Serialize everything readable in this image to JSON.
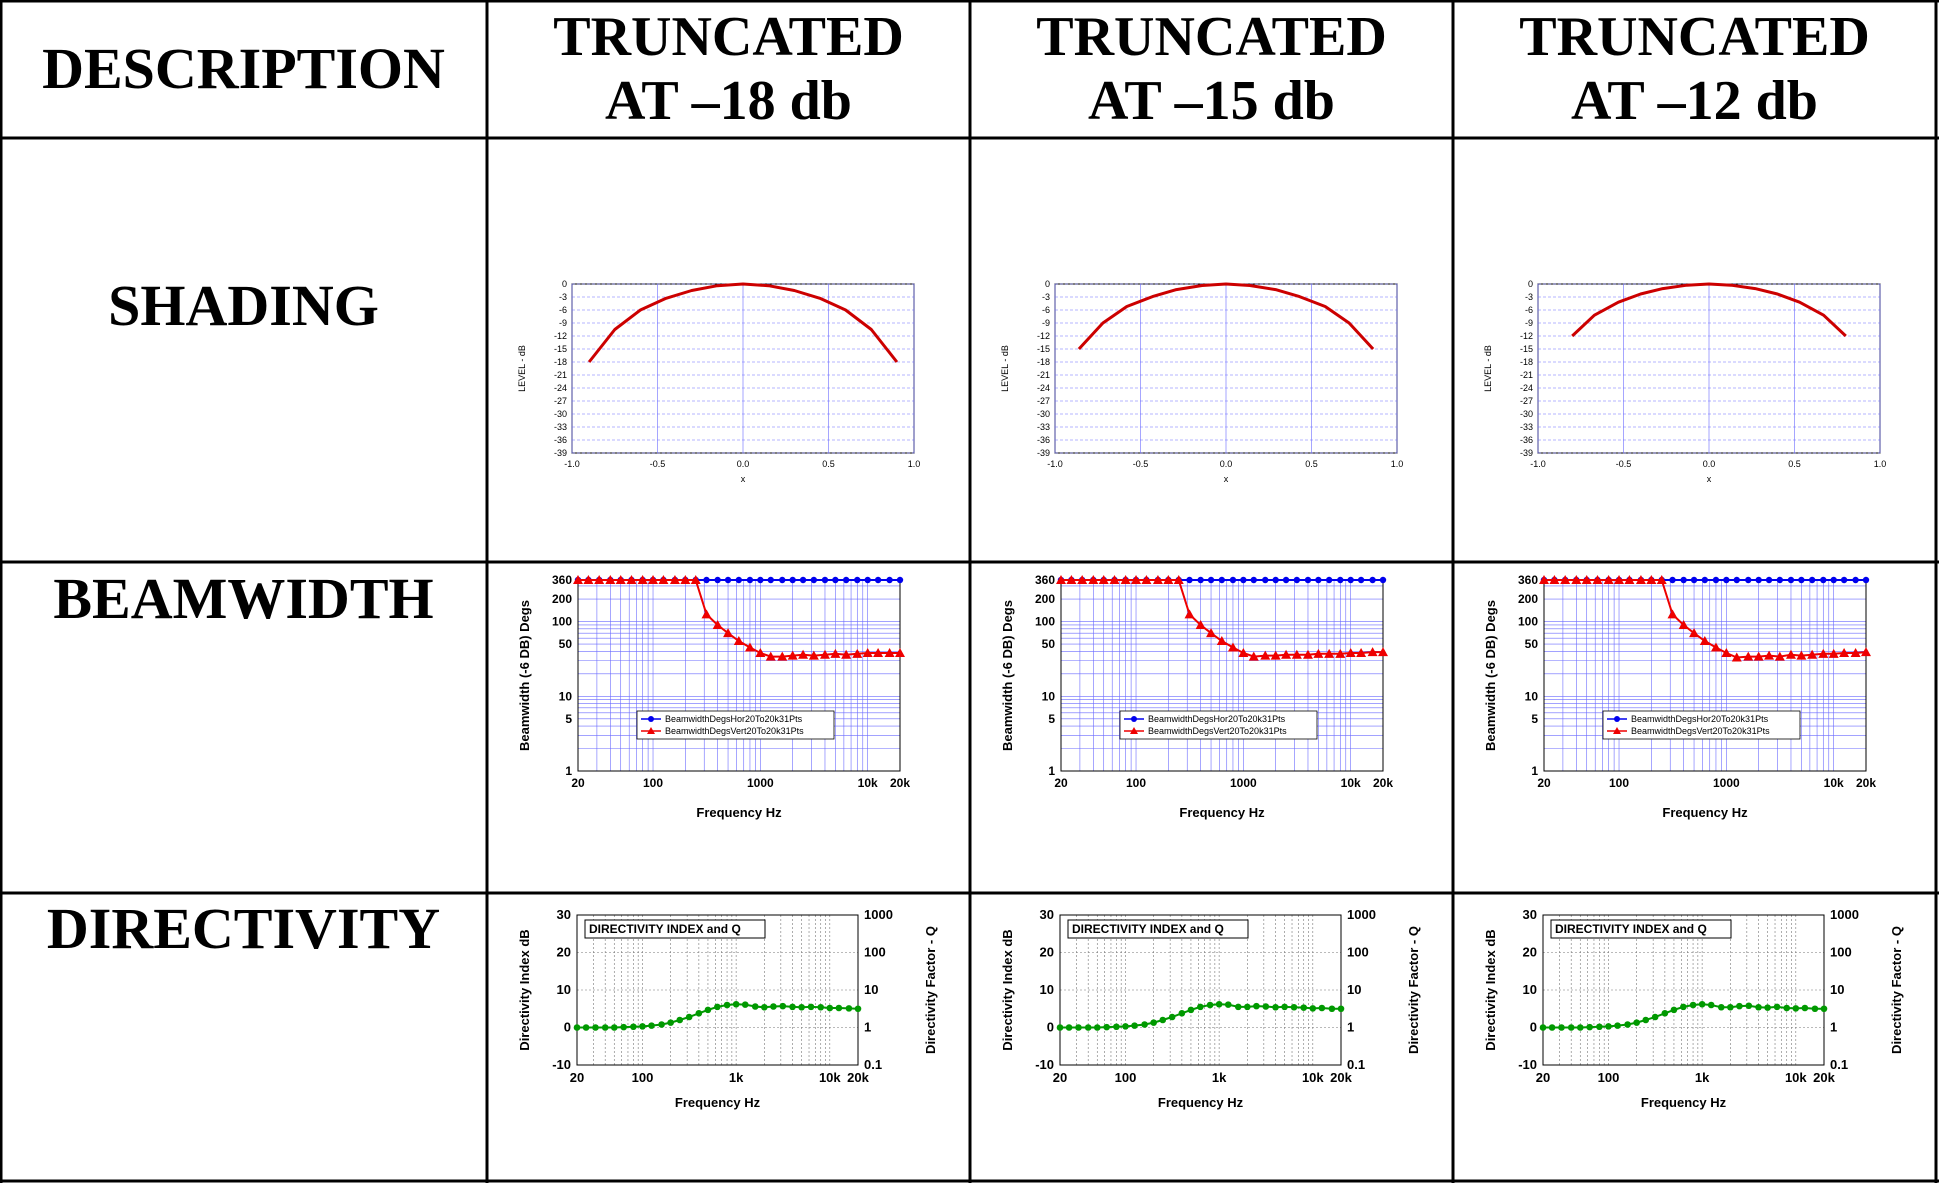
{
  "table": {
    "header_description": "DESCRIPTION",
    "columns": [
      "TRUNCATED\nAT –18 db",
      "TRUNCATED\nAT –15 db",
      "TRUNCATED\nAT –12 db"
    ],
    "rows": [
      "SHADING",
      "BEAMWIDTH",
      "DIRECTIVITY"
    ]
  },
  "colors": {
    "shading_curve": "#cc0000",
    "grid_blue": "#6b6bff",
    "hor_series": "#0000ee",
    "vert_series": "#ee0000",
    "di_series": "#009900"
  },
  "chart_data": [
    {
      "type": "line",
      "row": "SHADING",
      "column": "TRUNCATED AT –18 db",
      "xlabel": "x",
      "ylabel": "LEVEL - dB",
      "xlim": [
        -1.0,
        1.0
      ],
      "ylim": [
        -39,
        0
      ],
      "xticks": [
        "-1.0",
        "-0.5",
        "0.0",
        "0.5",
        "1.0"
      ],
      "yticks": [
        "0",
        "-3",
        "-6",
        "-9",
        "-12",
        "-15",
        "-18",
        "-21",
        "-24",
        "-27",
        "-30",
        "-33",
        "-36",
        "-39"
      ],
      "series": [
        {
          "x": [
            -0.9,
            -0.75,
            -0.6,
            -0.45,
            -0.3,
            -0.15,
            0,
            0.15,
            0.3,
            0.45,
            0.6,
            0.75,
            0.9
          ],
          "values": [
            -18,
            -10.5,
            -6,
            -3.3,
            -1.5,
            -0.4,
            0,
            -0.4,
            -1.5,
            -3.3,
            -6,
            -10.5,
            -18
          ]
        }
      ]
    },
    {
      "type": "line",
      "row": "SHADING",
      "column": "TRUNCATED AT –15 db",
      "xlabel": "x",
      "ylabel": "LEVEL - dB",
      "xlim": [
        -1.0,
        1.0
      ],
      "ylim": [
        -39,
        0
      ],
      "xticks": [
        "-1.0",
        "-0.5",
        "0.0",
        "0.5",
        "1.0"
      ],
      "yticks": [
        "0",
        "-3",
        "-6",
        "-9",
        "-12",
        "-15",
        "-18",
        "-21",
        "-24",
        "-27",
        "-30",
        "-33",
        "-36",
        "-39"
      ],
      "series": [
        {
          "x": [
            -0.86,
            -0.72,
            -0.58,
            -0.43,
            -0.29,
            -0.14,
            0,
            0.14,
            0.29,
            0.43,
            0.58,
            0.72,
            0.86
          ],
          "values": [
            -15,
            -9,
            -5.2,
            -2.9,
            -1.3,
            -0.35,
            0,
            -0.35,
            -1.3,
            -2.9,
            -5.2,
            -9,
            -15
          ]
        }
      ]
    },
    {
      "type": "line",
      "row": "SHADING",
      "column": "TRUNCATED AT –12 db",
      "xlabel": "x",
      "ylabel": "LEVEL - dB",
      "xlim": [
        -1.0,
        1.0
      ],
      "ylim": [
        -39,
        0
      ],
      "xticks": [
        "-1.0",
        "-0.5",
        "0.0",
        "0.5",
        "1.0"
      ],
      "yticks": [
        "0",
        "-3",
        "-6",
        "-9",
        "-12",
        "-15",
        "-18",
        "-21",
        "-24",
        "-27",
        "-30",
        "-33",
        "-36",
        "-39"
      ],
      "series": [
        {
          "x": [
            -0.8,
            -0.67,
            -0.53,
            -0.4,
            -0.27,
            -0.13,
            0,
            0.13,
            0.27,
            0.4,
            0.53,
            0.67,
            0.8
          ],
          "values": [
            -12,
            -7.2,
            -4.2,
            -2.3,
            -1.05,
            -0.28,
            0,
            -0.28,
            -1.05,
            -2.3,
            -4.2,
            -7.2,
            -12
          ]
        }
      ]
    },
    {
      "type": "line",
      "row": "BEAMWIDTH",
      "column": "TRUNCATED AT –18 db",
      "xlabel": "Frequency  Hz",
      "ylabel": "Beamwidth (-6 DB)  Degs",
      "xscale": "log",
      "yscale": "log",
      "xlim": [
        20,
        20000
      ],
      "ylim": [
        1,
        360
      ],
      "xticks": [
        "20",
        "100",
        "1000",
        "10k",
        "20k"
      ],
      "yticks": [
        "360",
        "200",
        "100",
        "50",
        "10",
        "5",
        "1"
      ],
      "legend_position": "bottom-center",
      "x": [
        20,
        25,
        31.5,
        40,
        50,
        63,
        80,
        100,
        125,
        160,
        200,
        250,
        315,
        400,
        500,
        630,
        800,
        1000,
        1250,
        1600,
        2000,
        2500,
        3150,
        4000,
        5000,
        6300,
        8000,
        10000,
        12500,
        16000,
        20000
      ],
      "series": [
        {
          "name": "BeamwidthDegsHor20To20k31Pts",
          "values": [
            360,
            360,
            360,
            360,
            360,
            360,
            360,
            360,
            360,
            360,
            360,
            360,
            360,
            360,
            360,
            360,
            360,
            360,
            360,
            360,
            360,
            360,
            360,
            360,
            360,
            360,
            360,
            360,
            360,
            360,
            360
          ]
        },
        {
          "name": "BeamwidthDegsVert20To20k31Pts",
          "values": [
            360,
            360,
            360,
            360,
            360,
            360,
            360,
            360,
            360,
            360,
            360,
            360,
            125,
            90,
            70,
            55,
            45,
            38,
            34,
            34,
            35,
            36,
            35,
            36,
            37,
            36,
            37,
            38,
            38,
            38,
            38
          ]
        }
      ]
    },
    {
      "type": "line",
      "row": "BEAMWIDTH",
      "column": "TRUNCATED AT –15 db",
      "xlabel": "Frequency  Hz",
      "ylabel": "Beamwidth (-6 DB)  Degs",
      "xscale": "log",
      "yscale": "log",
      "xlim": [
        20,
        20000
      ],
      "ylim": [
        1,
        360
      ],
      "xticks": [
        "20",
        "100",
        "1000",
        "10k",
        "20k"
      ],
      "yticks": [
        "360",
        "200",
        "100",
        "50",
        "10",
        "5",
        "1"
      ],
      "legend_position": "bottom-center",
      "x": [
        20,
        25,
        31.5,
        40,
        50,
        63,
        80,
        100,
        125,
        160,
        200,
        250,
        315,
        400,
        500,
        630,
        800,
        1000,
        1250,
        1600,
        2000,
        2500,
        3150,
        4000,
        5000,
        6300,
        8000,
        10000,
        12500,
        16000,
        20000
      ],
      "series": [
        {
          "name": "BeamwidthDegsHor20To20k31Pts",
          "values": [
            360,
            360,
            360,
            360,
            360,
            360,
            360,
            360,
            360,
            360,
            360,
            360,
            360,
            360,
            360,
            360,
            360,
            360,
            360,
            360,
            360,
            360,
            360,
            360,
            360,
            360,
            360,
            360,
            360,
            360,
            360
          ]
        },
        {
          "name": "BeamwidthDegsVert20To20k31Pts",
          "values": [
            360,
            360,
            360,
            360,
            360,
            360,
            360,
            360,
            360,
            360,
            360,
            360,
            125,
            90,
            70,
            55,
            45,
            38,
            34,
            35,
            35,
            36,
            36,
            36,
            37,
            37,
            37,
            38,
            38,
            39,
            39
          ]
        }
      ]
    },
    {
      "type": "line",
      "row": "BEAMWIDTH",
      "column": "TRUNCATED AT –12 db",
      "xlabel": "Frequency  Hz",
      "ylabel": "Beamwidth (-6 DB)  Degs",
      "xscale": "log",
      "yscale": "log",
      "xlim": [
        20,
        20000
      ],
      "ylim": [
        1,
        360
      ],
      "xticks": [
        "20",
        "100",
        "1000",
        "10k",
        "20k"
      ],
      "yticks": [
        "360",
        "200",
        "100",
        "50",
        "10",
        "5",
        "1"
      ],
      "legend_position": "bottom-center",
      "x": [
        20,
        25,
        31.5,
        40,
        50,
        63,
        80,
        100,
        125,
        160,
        200,
        250,
        315,
        400,
        500,
        630,
        800,
        1000,
        1250,
        1600,
        2000,
        2500,
        3150,
        4000,
        5000,
        6300,
        8000,
        10000,
        12500,
        16000,
        20000
      ],
      "series": [
        {
          "name": "BeamwidthDegsHor20To20k31Pts",
          "values": [
            360,
            360,
            360,
            360,
            360,
            360,
            360,
            360,
            360,
            360,
            360,
            360,
            360,
            360,
            360,
            360,
            360,
            360,
            360,
            360,
            360,
            360,
            360,
            360,
            360,
            360,
            360,
            360,
            360,
            360,
            360
          ]
        },
        {
          "name": "BeamwidthDegsVert20To20k31Pts",
          "values": [
            360,
            360,
            360,
            360,
            360,
            360,
            360,
            360,
            360,
            360,
            360,
            360,
            125,
            90,
            70,
            55,
            45,
            38,
            33,
            34,
            34,
            35,
            34,
            36,
            35,
            36,
            37,
            37,
            38,
            38,
            39
          ]
        }
      ]
    },
    {
      "type": "line",
      "row": "DIRECTIVITY",
      "column": "TRUNCATED AT –18 db",
      "title": "DIRECTIVITY INDEX and Q",
      "xlabel": "Frequency  Hz",
      "ylabel": "Directivity Index  dB",
      "y2label": "Directivity Factor - Q",
      "xscale": "log",
      "xlim": [
        20,
        20000
      ],
      "ylim": [
        -10,
        30
      ],
      "xticks": [
        "20",
        "100",
        "1k",
        "10k",
        "20k"
      ],
      "yticks": [
        "30",
        "20",
        "10",
        "0",
        "-10"
      ],
      "y2ticks": [
        "1000",
        "100",
        "10",
        "1",
        "0.1"
      ],
      "x": [
        20,
        25,
        31.5,
        40,
        50,
        63,
        80,
        100,
        125,
        160,
        200,
        250,
        315,
        400,
        500,
        630,
        800,
        1000,
        1250,
        1600,
        2000,
        2500,
        3150,
        4000,
        5000,
        6300,
        8000,
        10000,
        12500,
        16000,
        20000
      ],
      "series": [
        {
          "name": "Directivity Index",
          "values": [
            0,
            0,
            0,
            0,
            0,
            0.1,
            0.2,
            0.3,
            0.5,
            0.8,
            1.3,
            2,
            2.8,
            3.8,
            4.7,
            5.5,
            6,
            6.2,
            6.1,
            5.6,
            5.4,
            5.6,
            5.7,
            5.5,
            5.4,
            5.5,
            5.4,
            5.2,
            5.2,
            5.1,
            5
          ]
        }
      ]
    },
    {
      "type": "line",
      "row": "DIRECTIVITY",
      "column": "TRUNCATED AT –15 db",
      "title": "DIRECTIVITY INDEX and Q",
      "xlabel": "Frequency  Hz",
      "ylabel": "Directivity Index  dB",
      "y2label": "Directivity Factor - Q",
      "xscale": "log",
      "xlim": [
        20,
        20000
      ],
      "ylim": [
        -10,
        30
      ],
      "xticks": [
        "20",
        "100",
        "1k",
        "10k",
        "20k"
      ],
      "yticks": [
        "30",
        "20",
        "10",
        "0",
        "-10"
      ],
      "y2ticks": [
        "1000",
        "100",
        "10",
        "1",
        "0.1"
      ],
      "x": [
        20,
        25,
        31.5,
        40,
        50,
        63,
        80,
        100,
        125,
        160,
        200,
        250,
        315,
        400,
        500,
        630,
        800,
        1000,
        1250,
        1600,
        2000,
        2500,
        3150,
        4000,
        5000,
        6300,
        8000,
        10000,
        12500,
        16000,
        20000
      ],
      "series": [
        {
          "name": "Directivity Index",
          "values": [
            0,
            0,
            0,
            0,
            0,
            0.1,
            0.2,
            0.3,
            0.5,
            0.8,
            1.3,
            2,
            2.8,
            3.8,
            4.7,
            5.5,
            6,
            6.2,
            6.1,
            5.5,
            5.5,
            5.7,
            5.6,
            5.4,
            5.5,
            5.4,
            5.3,
            5.1,
            5.2,
            5,
            5
          ]
        }
      ]
    },
    {
      "type": "line",
      "row": "DIRECTIVITY",
      "column": "TRUNCATED AT –12 db",
      "title": "DIRECTIVITY INDEX and Q",
      "xlabel": "Frequency  Hz",
      "ylabel": "Directivity Index  dB",
      "y2label": "Directivity Factor - Q",
      "xscale": "log",
      "xlim": [
        20,
        20000
      ],
      "ylim": [
        -10,
        30
      ],
      "xticks": [
        "20",
        "100",
        "1k",
        "10k",
        "20k"
      ],
      "yticks": [
        "30",
        "20",
        "10",
        "0",
        "-10"
      ],
      "y2ticks": [
        "1000",
        "100",
        "10",
        "1",
        "0.1"
      ],
      "x": [
        20,
        25,
        31.5,
        40,
        50,
        63,
        80,
        100,
        125,
        160,
        200,
        250,
        315,
        400,
        500,
        630,
        800,
        1000,
        1250,
        1600,
        2000,
        2500,
        3150,
        4000,
        5000,
        6300,
        8000,
        10000,
        12500,
        16000,
        20000
      ],
      "series": [
        {
          "name": "Directivity Index",
          "values": [
            0,
            0,
            0,
            0,
            0,
            0.1,
            0.2,
            0.3,
            0.5,
            0.8,
            1.3,
            2,
            2.8,
            3.8,
            4.7,
            5.5,
            6,
            6.2,
            6,
            5.4,
            5.4,
            5.7,
            5.8,
            5.4,
            5.3,
            5.5,
            5.2,
            5.1,
            5.2,
            5,
            5
          ]
        }
      ]
    }
  ]
}
